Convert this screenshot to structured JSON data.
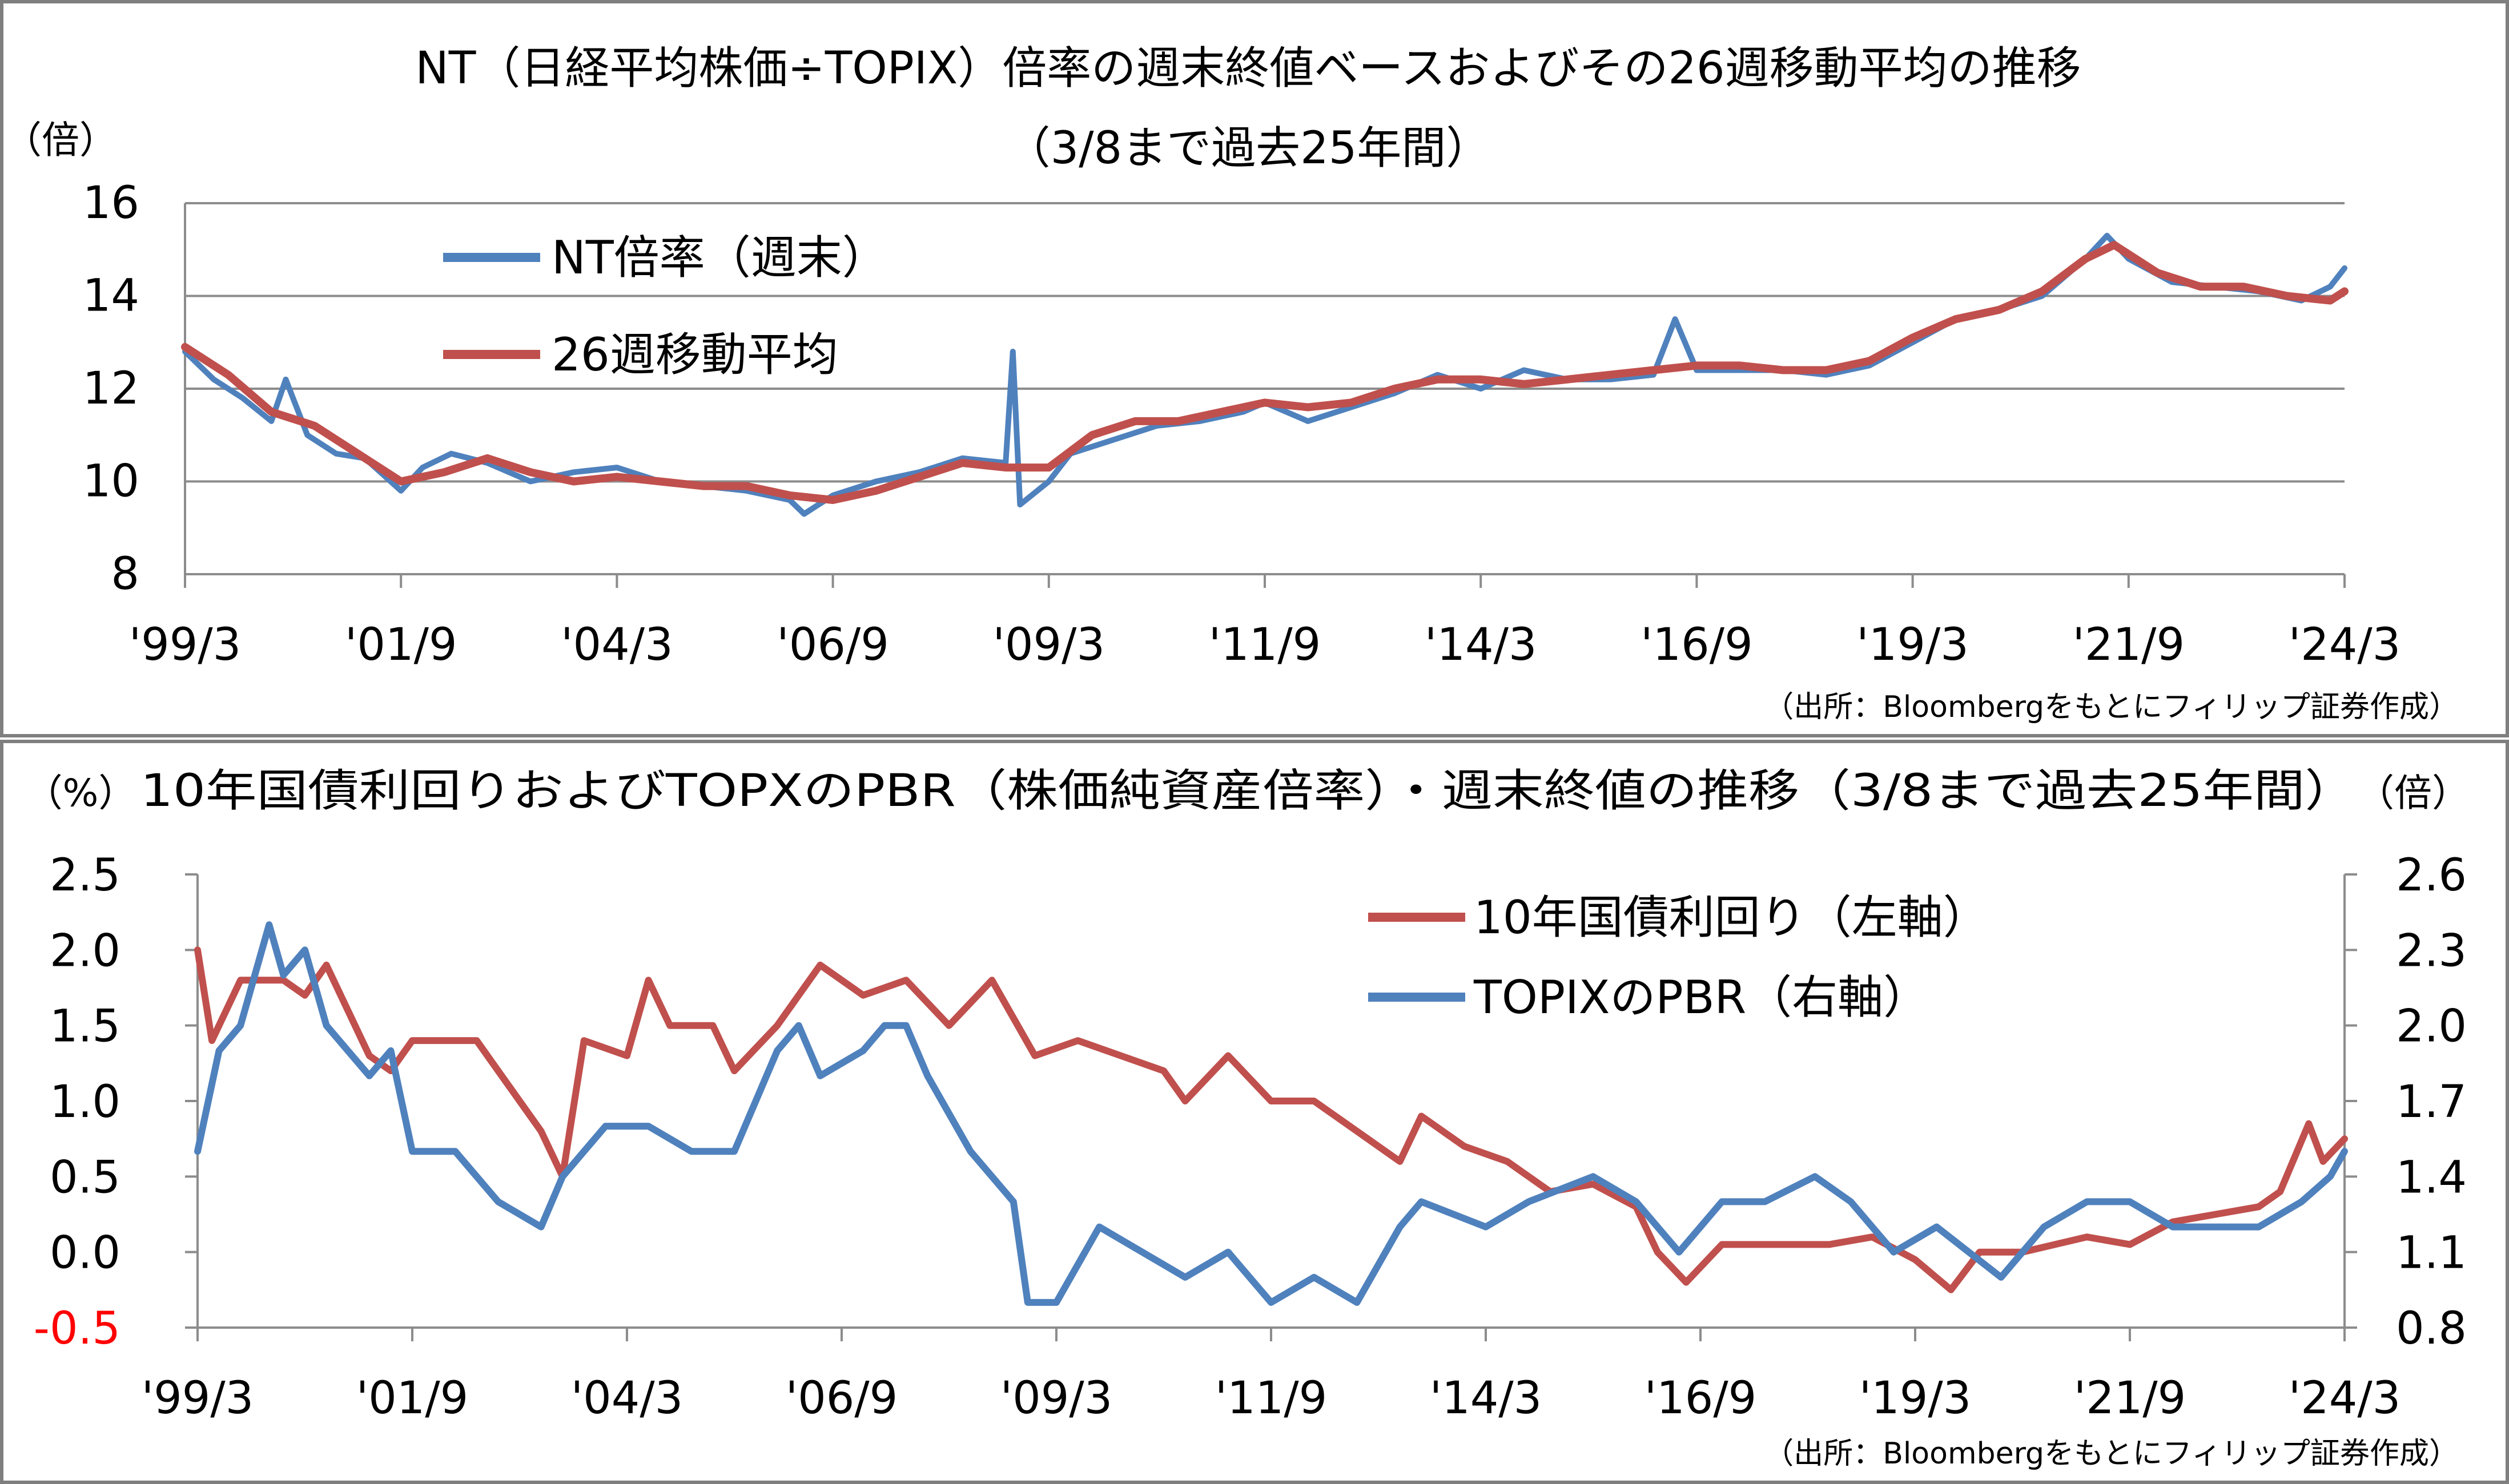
{
  "chart_data": [
    {
      "type": "line",
      "title": "NT（日経平均株価÷TOPIX）倍率の週末終値ベースおよびその26週移動平均の推移",
      "subtitle": "（3/8まで過去25年間）",
      "y_unit": "（倍）",
      "ylim": [
        8,
        16
      ],
      "yticks": [
        "16",
        "14",
        "12",
        "10",
        "8"
      ],
      "xlim": [
        "1999-03",
        "2024-03"
      ],
      "xticks": [
        "'99/3",
        "'01/9",
        "'04/3",
        "'06/9",
        "'09/3",
        "'11/9",
        "'14/3",
        "'16/9",
        "'19/3",
        "'21/9",
        "'24/3"
      ],
      "grid": true,
      "legend_position": "top-left",
      "source": "（出所：Bloombergをもとにフィリップ証券作成）",
      "series": [
        {
          "name": "NT倍率（週末）",
          "color": "#4f81bd",
          "points": [
            [
              "1999-03",
              12.8
            ],
            [
              "1999-07",
              12.2
            ],
            [
              "1999-11",
              11.8
            ],
            [
              "2000-03",
              11.3
            ],
            [
              "2000-05",
              12.2
            ],
            [
              "2000-08",
              11.0
            ],
            [
              "2000-12",
              10.6
            ],
            [
              "2001-04",
              10.5
            ],
            [
              "2001-09",
              9.8
            ],
            [
              "2001-12",
              10.3
            ],
            [
              "2002-04",
              10.6
            ],
            [
              "2002-09",
              10.4
            ],
            [
              "2003-03",
              10.0
            ],
            [
              "2003-09",
              10.2
            ],
            [
              "2004-03",
              10.3
            ],
            [
              "2004-09",
              10.0
            ],
            [
              "2005-03",
              9.9
            ],
            [
              "2005-09",
              9.8
            ],
            [
              "2006-03",
              9.6
            ],
            [
              "2006-05",
              9.3
            ],
            [
              "2006-09",
              9.7
            ],
            [
              "2007-03",
              10.0
            ],
            [
              "2007-09",
              10.2
            ],
            [
              "2008-03",
              10.5
            ],
            [
              "2008-09",
              10.4
            ],
            [
              "2008-10",
              12.8
            ],
            [
              "2008-11",
              9.5
            ],
            [
              "2009-03",
              10.0
            ],
            [
              "2009-06",
              10.6
            ],
            [
              "2009-12",
              10.9
            ],
            [
              "2010-06",
              11.2
            ],
            [
              "2010-12",
              11.3
            ],
            [
              "2011-06",
              11.5
            ],
            [
              "2011-09",
              11.7
            ],
            [
              "2012-03",
              11.3
            ],
            [
              "2012-09",
              11.6
            ],
            [
              "2013-03",
              11.9
            ],
            [
              "2013-09",
              12.3
            ],
            [
              "2014-03",
              12.0
            ],
            [
              "2014-09",
              12.4
            ],
            [
              "2015-03",
              12.2
            ],
            [
              "2015-09",
              12.2
            ],
            [
              "2016-03",
              12.3
            ],
            [
              "2016-06",
              13.5
            ],
            [
              "2016-09",
              12.4
            ],
            [
              "2017-03",
              12.4
            ],
            [
              "2017-09",
              12.4
            ],
            [
              "2018-03",
              12.3
            ],
            [
              "2018-09",
              12.5
            ],
            [
              "2019-03",
              13.0
            ],
            [
              "2019-09",
              13.5
            ],
            [
              "2020-03",
              13.7
            ],
            [
              "2020-09",
              14.0
            ],
            [
              "2021-03",
              14.8
            ],
            [
              "2021-06",
              15.3
            ],
            [
              "2021-09",
              14.8
            ],
            [
              "2022-03",
              14.3
            ],
            [
              "2022-09",
              14.2
            ],
            [
              "2023-03",
              14.1
            ],
            [
              "2023-09",
              13.9
            ],
            [
              "2024-01",
              14.2
            ],
            [
              "2024-03",
              14.6
            ]
          ]
        },
        {
          "name": "26週移動平均",
          "color": "#c0504d",
          "points": [
            [
              "1999-03",
              12.9
            ],
            [
              "1999-09",
              12.3
            ],
            [
              "2000-03",
              11.5
            ],
            [
              "2000-09",
              11.2
            ],
            [
              "2001-03",
              10.6
            ],
            [
              "2001-09",
              10.0
            ],
            [
              "2002-03",
              10.2
            ],
            [
              "2002-09",
              10.5
            ],
            [
              "2003-03",
              10.2
            ],
            [
              "2003-09",
              10.0
            ],
            [
              "2004-03",
              10.1
            ],
            [
              "2004-09",
              10.0
            ],
            [
              "2005-03",
              9.9
            ],
            [
              "2005-09",
              9.9
            ],
            [
              "2006-03",
              9.7
            ],
            [
              "2006-09",
              9.6
            ],
            [
              "2007-03",
              9.8
            ],
            [
              "2007-09",
              10.1
            ],
            [
              "2008-03",
              10.4
            ],
            [
              "2008-09",
              10.3
            ],
            [
              "2009-03",
              10.3
            ],
            [
              "2009-09",
              11.0
            ],
            [
              "2010-03",
              11.3
            ],
            [
              "2010-09",
              11.3
            ],
            [
              "2011-03",
              11.5
            ],
            [
              "2011-09",
              11.7
            ],
            [
              "2012-03",
              11.6
            ],
            [
              "2012-09",
              11.7
            ],
            [
              "2013-03",
              12.0
            ],
            [
              "2013-09",
              12.2
            ],
            [
              "2014-03",
              12.2
            ],
            [
              "2014-09",
              12.1
            ],
            [
              "2015-03",
              12.2
            ],
            [
              "2015-09",
              12.3
            ],
            [
              "2016-03",
              12.4
            ],
            [
              "2016-09",
              12.5
            ],
            [
              "2017-03",
              12.5
            ],
            [
              "2017-09",
              12.4
            ],
            [
              "2018-03",
              12.4
            ],
            [
              "2018-09",
              12.6
            ],
            [
              "2019-03",
              13.1
            ],
            [
              "2019-09",
              13.5
            ],
            [
              "2020-03",
              13.7
            ],
            [
              "2020-09",
              14.1
            ],
            [
              "2021-03",
              14.8
            ],
            [
              "2021-07",
              15.1
            ],
            [
              "2022-01",
              14.5
            ],
            [
              "2022-07",
              14.2
            ],
            [
              "2023-01",
              14.2
            ],
            [
              "2023-07",
              14.0
            ],
            [
              "2024-01",
              13.9
            ],
            [
              "2024-03",
              14.1
            ]
          ]
        }
      ]
    },
    {
      "type": "line",
      "title": "10年国債利回りおよびTOPXのPBR（株価純資産倍率）・週末終値の推移（3/8まで過去25年間）",
      "y_unit_left": "（%）",
      "y_unit_right": "（倍）",
      "ylim_left": [
        -0.5,
        2.5
      ],
      "ylim_right": [
        0.8,
        2.6
      ],
      "yticks_left": [
        "2.5",
        "2.0",
        "1.5",
        "1.0",
        "0.5",
        "0.0",
        "-0.5"
      ],
      "yticks_right": [
        "2.6",
        "2.3",
        "2.0",
        "1.7",
        "1.4",
        "1.1",
        "0.8"
      ],
      "negative_tick_color": "#ff0000",
      "xlim": [
        "1999-03",
        "2024-03"
      ],
      "xticks": [
        "'99/3",
        "'01/9",
        "'04/3",
        "'06/9",
        "'09/3",
        "'11/9",
        "'14/3",
        "'16/9",
        "'19/3",
        "'21/9",
        "'24/3"
      ],
      "grid": false,
      "legend_position": "top-right",
      "source": "（出所：Bloombergをもとにフィリップ証券作成）",
      "series": [
        {
          "name": "10年国債利回り（左軸）",
          "axis": "left",
          "color": "#c0504d",
          "points": [
            [
              "1999-03",
              2.0
            ],
            [
              "1999-05",
              1.4
            ],
            [
              "1999-09",
              1.8
            ],
            [
              "2000-03",
              1.8
            ],
            [
              "2000-06",
              1.7
            ],
            [
              "2000-09",
              1.9
            ],
            [
              "2001-03",
              1.3
            ],
            [
              "2001-06",
              1.2
            ],
            [
              "2001-09",
              1.4
            ],
            [
              "2002-03",
              1.4
            ],
            [
              "2002-06",
              1.4
            ],
            [
              "2002-09",
              1.2
            ],
            [
              "2002-12",
              1.0
            ],
            [
              "2003-03",
              0.8
            ],
            [
              "2003-06",
              0.5
            ],
            [
              "2003-09",
              1.4
            ],
            [
              "2004-03",
              1.3
            ],
            [
              "2004-06",
              1.8
            ],
            [
              "2004-09",
              1.5
            ],
            [
              "2005-03",
              1.5
            ],
            [
              "2005-06",
              1.2
            ],
            [
              "2005-12",
              1.5
            ],
            [
              "2006-03",
              1.7
            ],
            [
              "2006-06",
              1.9
            ],
            [
              "2006-12",
              1.7
            ],
            [
              "2007-06",
              1.8
            ],
            [
              "2007-12",
              1.5
            ],
            [
              "2008-06",
              1.8
            ],
            [
              "2008-12",
              1.3
            ],
            [
              "2009-06",
              1.4
            ],
            [
              "2009-12",
              1.3
            ],
            [
              "2010-06",
              1.2
            ],
            [
              "2010-09",
              1.0
            ],
            [
              "2011-03",
              1.3
            ],
            [
              "2011-09",
              1.0
            ],
            [
              "2012-03",
              1.0
            ],
            [
              "2012-09",
              0.8
            ],
            [
              "2013-03",
              0.6
            ],
            [
              "2013-06",
              0.9
            ],
            [
              "2013-12",
              0.7
            ],
            [
              "2014-06",
              0.6
            ],
            [
              "2014-12",
              0.4
            ],
            [
              "2015-06",
              0.45
            ],
            [
              "2015-12",
              0.3
            ],
            [
              "2016-03",
              0.0
            ],
            [
              "2016-07",
              -0.2
            ],
            [
              "2016-12",
              0.05
            ],
            [
              "2017-06",
              0.05
            ],
            [
              "2018-03",
              0.05
            ],
            [
              "2018-09",
              0.1
            ],
            [
              "2019-03",
              -0.05
            ],
            [
              "2019-08",
              -0.25
            ],
            [
              "2019-12",
              0.0
            ],
            [
              "2020-06",
              0.0
            ],
            [
              "2021-03",
              0.1
            ],
            [
              "2021-09",
              0.05
            ],
            [
              "2022-03",
              0.2
            ],
            [
              "2022-09",
              0.25
            ],
            [
              "2023-03",
              0.3
            ],
            [
              "2023-06",
              0.4
            ],
            [
              "2023-10",
              0.85
            ],
            [
              "2023-12",
              0.6
            ],
            [
              "2024-03",
              0.75
            ]
          ]
        },
        {
          "name": "TOPIXのPBR（右軸）",
          "axis": "right",
          "color": "#4f81bd",
          "points": [
            [
              "1999-03",
              1.5
            ],
            [
              "1999-06",
              1.9
            ],
            [
              "1999-09",
              2.0
            ],
            [
              "2000-01",
              2.4
            ],
            [
              "2000-03",
              2.2
            ],
            [
              "2000-06",
              2.3
            ],
            [
              "2000-09",
              2.0
            ],
            [
              "2001-03",
              1.8
            ],
            [
              "2001-06",
              1.9
            ],
            [
              "2001-09",
              1.5
            ],
            [
              "2002-03",
              1.5
            ],
            [
              "2002-06",
              1.4
            ],
            [
              "2002-09",
              1.3
            ],
            [
              "2003-03",
              1.2
            ],
            [
              "2003-06",
              1.4
            ],
            [
              "2003-12",
              1.6
            ],
            [
              "2004-06",
              1.6
            ],
            [
              "2004-12",
              1.5
            ],
            [
              "2005-06",
              1.5
            ],
            [
              "2005-12",
              1.9
            ],
            [
              "2006-03",
              2.0
            ],
            [
              "2006-06",
              1.8
            ],
            [
              "2006-12",
              1.9
            ],
            [
              "2007-03",
              2.0
            ],
            [
              "2007-06",
              2.0
            ],
            [
              "2007-09",
              1.8
            ],
            [
              "2008-03",
              1.5
            ],
            [
              "2008-09",
              1.3
            ],
            [
              "2008-11",
              0.9
            ],
            [
              "2009-03",
              0.9
            ],
            [
              "2009-09",
              1.2
            ],
            [
              "2010-03",
              1.1
            ],
            [
              "2010-09",
              1.0
            ],
            [
              "2011-03",
              1.1
            ],
            [
              "2011-09",
              0.9
            ],
            [
              "2012-03",
              1.0
            ],
            [
              "2012-09",
              0.9
            ],
            [
              "2013-03",
              1.2
            ],
            [
              "2013-06",
              1.3
            ],
            [
              "2014-03",
              1.2
            ],
            [
              "2014-09",
              1.3
            ],
            [
              "2015-06",
              1.4
            ],
            [
              "2015-12",
              1.3
            ],
            [
              "2016-06",
              1.1
            ],
            [
              "2016-12",
              1.3
            ],
            [
              "2017-06",
              1.3
            ],
            [
              "2018-01",
              1.4
            ],
            [
              "2018-06",
              1.3
            ],
            [
              "2018-12",
              1.1
            ],
            [
              "2019-06",
              1.2
            ],
            [
              "2020-03",
              1.0
            ],
            [
              "2020-09",
              1.2
            ],
            [
              "2021-03",
              1.3
            ],
            [
              "2021-09",
              1.3
            ],
            [
              "2022-03",
              1.2
            ],
            [
              "2022-09",
              1.2
            ],
            [
              "2023-03",
              1.2
            ],
            [
              "2023-09",
              1.3
            ],
            [
              "2024-01",
              1.4
            ],
            [
              "2024-03",
              1.5
            ]
          ]
        }
      ]
    }
  ]
}
